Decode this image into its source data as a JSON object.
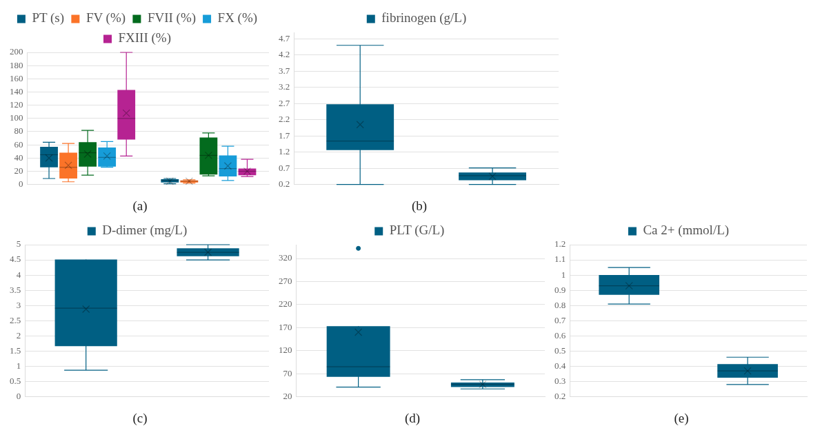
{
  "chart_data": [
    {
      "type": "box",
      "categories": [
        null,
        null
      ],
      "legend": "top",
      "grid": "y",
      "ylim": [
        0,
        200
      ],
      "yticks": [
        0,
        20,
        40,
        60,
        80,
        100,
        120,
        140,
        160,
        180,
        200
      ],
      "annotations": [
        "(a)"
      ],
      "series": [
        {
          "name": "PT (s)",
          "color": "#005f83",
          "boxes": [
            {
              "low": 9,
              "q1": 26,
              "median": 45,
              "q3": 57,
              "high": 64,
              "mean": 40
            },
            {
              "low": 1,
              "q1": 3,
              "median": 6,
              "q3": 8,
              "high": 9,
              "mean": 5
            }
          ]
        },
        {
          "name": "FV (%)",
          "color": "#fb7328",
          "boxes": [
            {
              "low": 4,
              "q1": 9,
              "median": 26,
              "q3": 48,
              "high": 62,
              "mean": 29
            },
            {
              "low": 2,
              "q1": 3,
              "median": 5,
              "q3": 6,
              "high": 7,
              "mean": 5
            }
          ]
        },
        {
          "name": "FVII (%)",
          "color": "#036b1e",
          "boxes": [
            {
              "low": 14,
              "q1": 27,
              "median": 48,
              "q3": 64,
              "high": 82,
              "mean": 46
            },
            {
              "low": 13,
              "q1": 15,
              "median": 44,
              "q3": 71,
              "high": 78,
              "mean": 44
            }
          ]
        },
        {
          "name": "FX (%)",
          "color": "#169cd8",
          "boxes": [
            {
              "low": 26,
              "q1": 27,
              "median": 41,
              "q3": 56,
              "high": 65,
              "mean": 43
            },
            {
              "low": 6,
              "q1": 12,
              "median": 24,
              "q3": 44,
              "high": 58,
              "mean": 28
            }
          ]
        },
        {
          "name": "FXIII (%)",
          "color": "#b62392",
          "boxes": [
            {
              "low": 43,
              "q1": 68,
              "median": 100,
              "q3": 143,
              "high": 200,
              "mean": 108
            },
            {
              "low": 12,
              "q1": 14,
              "median": 20,
              "q3": 24,
              "high": 38,
              "mean": 20
            }
          ]
        }
      ]
    },
    {
      "type": "box",
      "categories": [
        null,
        null
      ],
      "legend": "top",
      "grid": "y",
      "ylim": [
        0.2,
        4.9
      ],
      "yticks": [
        0.2,
        0.7,
        1.2,
        1.7,
        2.2,
        2.7,
        3.2,
        3.7,
        4.2,
        4.7
      ],
      "annotations": [
        "(b)"
      ],
      "series": [
        {
          "name": "fibrinogen (g/L)",
          "color": "#005f83",
          "boxes": [
            {
              "low": 0.2,
              "q1": 1.26,
              "median": 1.54,
              "q3": 2.68,
              "high": 4.5,
              "mean": 2.05
            },
            {
              "low": 0.2,
              "q1": 0.33,
              "median": 0.47,
              "q3": 0.57,
              "high": 0.71,
              "mean": 0.45
            }
          ]
        }
      ]
    },
    {
      "type": "box",
      "categories": [
        null,
        null
      ],
      "legend": "top",
      "grid": "y",
      "ylim": [
        0,
        5
      ],
      "yticks": [
        0,
        0.5,
        1,
        1.5,
        2,
        2.5,
        3,
        3.5,
        4,
        4.5,
        5
      ],
      "annotations": [
        "(c)"
      ],
      "series": [
        {
          "name": "D-dimer (mg/L)",
          "color": "#005f83",
          "boxes": [
            {
              "low": 0.87,
              "q1": 1.66,
              "median": 2.91,
              "q3": 4.51,
              "high": 4.51,
              "mean": 2.88
            },
            {
              "low": 4.5,
              "q1": 4.62,
              "median": 4.75,
              "q3": 4.88,
              "high": 5,
              "mean": 4.75
            }
          ]
        }
      ]
    },
    {
      "type": "box",
      "categories": [
        null,
        null
      ],
      "legend": "top",
      "grid": "y",
      "ylim": [
        20,
        350
      ],
      "yticks": [
        20,
        70,
        120,
        170,
        220,
        270,
        320
      ],
      "annotations": [
        "(d)"
      ],
      "series": [
        {
          "name": "PLT (G/L)",
          "color": "#005f83",
          "boxes": [
            {
              "low": 41,
              "q1": 63,
              "median": 85,
              "q3": 173,
              "high": 173,
              "mean": 160,
              "outliers": [
                342
              ]
            },
            {
              "low": 37,
              "q1": 41,
              "median": 47,
              "q3": 51,
              "high": 57,
              "mean": 47
            }
          ]
        }
      ]
    },
    {
      "type": "box",
      "categories": [
        null,
        null
      ],
      "legend": "top",
      "grid": "y",
      "ylim": [
        0.2,
        1.2
      ],
      "yticks": [
        0.2,
        0.3,
        0.4,
        0.5,
        0.6,
        0.7,
        0.8,
        0.9,
        1,
        1.1,
        1.2
      ],
      "annotations": [
        "(e)"
      ],
      "series": [
        {
          "name": "Ca 2+ (mmol/L)",
          "color": "#005f83",
          "boxes": [
            {
              "low": 0.81,
              "q1": 0.87,
              "median": 0.93,
              "q3": 1.0,
              "high": 1.05,
              "mean": 0.93
            },
            {
              "low": 0.28,
              "q1": 0.325,
              "median": 0.37,
              "q3": 0.415,
              "high": 0.46,
              "mean": 0.37
            }
          ]
        }
      ]
    }
  ]
}
